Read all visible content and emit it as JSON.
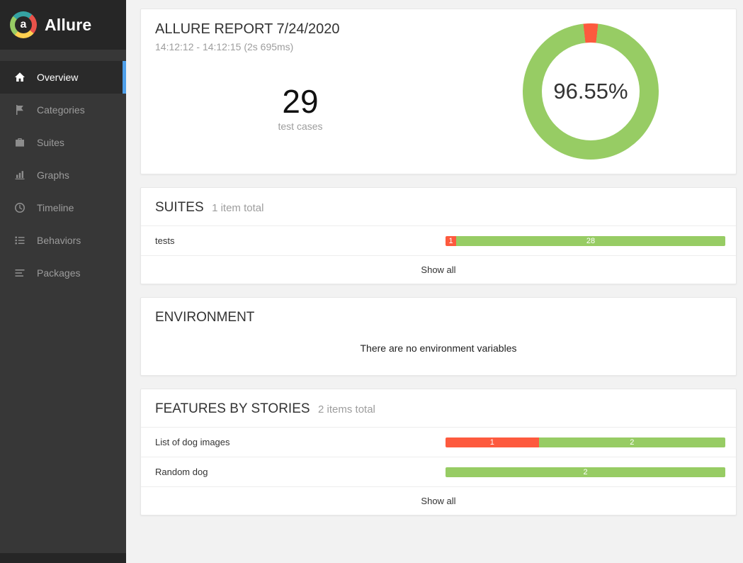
{
  "colors": {
    "passed": "#97cc64",
    "failed": "#fd5a3e",
    "accent": "#4e9fe9"
  },
  "sidebar": {
    "brand": "Allure",
    "logo_letter": "a",
    "items": [
      {
        "label": "Overview",
        "icon": "home-icon",
        "active": true
      },
      {
        "label": "Categories",
        "icon": "flag-icon",
        "active": false
      },
      {
        "label": "Suites",
        "icon": "briefcase-icon",
        "active": false
      },
      {
        "label": "Graphs",
        "icon": "bar-chart-icon",
        "active": false
      },
      {
        "label": "Timeline",
        "icon": "clock-icon",
        "active": false
      },
      {
        "label": "Behaviors",
        "icon": "list-icon",
        "active": false
      },
      {
        "label": "Packages",
        "icon": "align-left-icon",
        "active": false
      }
    ]
  },
  "overview": {
    "title": "ALLURE REPORT 7/24/2020",
    "subtitle": "14:12:12 - 14:12:15 (2s 695ms)",
    "total": "29",
    "total_label": "test cases"
  },
  "chart_data": {
    "type": "pie",
    "title": "Success rate donut",
    "labels": [
      "passed",
      "failed"
    ],
    "values": [
      28,
      1
    ],
    "colors": [
      "#97cc64",
      "#fd5a3e"
    ],
    "center_label": "96.55%"
  },
  "suites": {
    "title": "SUITES",
    "subtitle": "1 item total",
    "rows": [
      {
        "name": "tests",
        "failed": 1,
        "passed": 28
      }
    ],
    "show_all": "Show all"
  },
  "environment": {
    "title": "ENVIRONMENT",
    "empty_message": "There are no environment variables"
  },
  "features": {
    "title": "FEATURES BY STORIES",
    "subtitle": "2 items total",
    "rows": [
      {
        "name": "List of dog images",
        "failed": 1,
        "passed": 2
      },
      {
        "name": "Random dog",
        "failed": 0,
        "passed": 2
      }
    ],
    "show_all": "Show all"
  }
}
